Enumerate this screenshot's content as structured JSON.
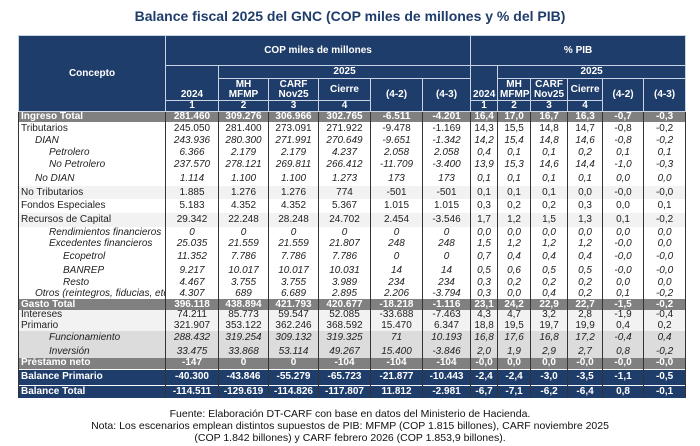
{
  "title": "Balance fiscal 2025 del GNC (COP miles de millones y % del PIB)",
  "header": {
    "concepto": "Concepto",
    "group_cop": "COP miles de millones",
    "group_pib": "% PIB",
    "year": "2025",
    "columns": [
      "2024",
      "MH MFMP",
      "CARF Nov25",
      "Cierre",
      "(4-2)",
      "(4-3)"
    ],
    "numbers": [
      "1",
      "2",
      "3",
      "4"
    ]
  },
  "rows": [
    {
      "label": "Ingreso Total",
      "style": "tot",
      "indent": 0,
      "values": [
        "281.460",
        "309.276",
        "306.966",
        "302.765",
        "-6.511",
        "-4.201",
        "16,4",
        "17,0",
        "16,7",
        "16,3",
        "-0,7",
        "-0,3"
      ]
    },
    {
      "label": "Tributarios",
      "style": "",
      "indent": 0,
      "values": [
        "245.050",
        "281.400",
        "273.091",
        "271.922",
        "-9.478",
        "-1.169",
        "14,3",
        "15,5",
        "14,8",
        "14,7",
        "-0,8",
        "-0,2"
      ]
    },
    {
      "label": "DIAN",
      "style": "it",
      "indent": 1,
      "values": [
        "243.936",
        "280.300",
        "271.991",
        "270.649",
        "-9.651",
        "-1.342",
        "14,2",
        "15,4",
        "14,8",
        "14,6",
        "-0,8",
        "-0,2"
      ]
    },
    {
      "label": "Petrolero",
      "style": "it",
      "indent": 2,
      "values": [
        "6.366",
        "2.179",
        "2.179",
        "4.237",
        "2.058",
        "2.058",
        "0,4",
        "0,1",
        "0,1",
        "0,2",
        "0,1",
        "0,1"
      ]
    },
    {
      "label": "No Petrolero",
      "style": "it",
      "indent": 2,
      "values": [
        "237.570",
        "278.121",
        "269.811",
        "266.412",
        "-11.709",
        "-3.400",
        "13,9",
        "15,3",
        "14,6",
        "14,4",
        "-1,0",
        "-0,3"
      ]
    },
    {
      "label": "No DIAN",
      "style": "it",
      "indent": 1,
      "values": [
        "1.114",
        "1.100",
        "1.100",
        "1.273",
        "173",
        "173",
        "0,1",
        "0,1",
        "0,1",
        "0,1",
        "0,0",
        "0,0"
      ]
    },
    {
      "label": "No Tributarios",
      "style": "band",
      "indent": 0,
      "values": [
        "1.885",
        "1.276",
        "1.276",
        "774",
        "-501",
        "-501",
        "0,1",
        "0,1",
        "0,1",
        "0,0",
        "-0,0",
        "-0,0"
      ]
    },
    {
      "label": "Fondos Especiales",
      "style": "",
      "indent": 0,
      "values": [
        "5.183",
        "4.352",
        "4.352",
        "5.367",
        "1.015",
        "1.015",
        "0,3",
        "0,2",
        "0,2",
        "0,3",
        "0,0",
        "0,1"
      ]
    },
    {
      "label": "Recursos de Capital",
      "style": "band",
      "indent": 0,
      "values": [
        "29.342",
        "22.248",
        "28.248",
        "24.702",
        "2.454",
        "-3.546",
        "1,7",
        "1,2",
        "1,5",
        "1,3",
        "0,1",
        "-0,2"
      ]
    },
    {
      "label": "Rendimientos financieros",
      "style": "it",
      "indent": 2,
      "values": [
        "0",
        "0",
        "0",
        "0",
        "0",
        "0",
        "0,0",
        "0,0",
        "0,0",
        "0,0",
        "0,0",
        "0,0"
      ]
    },
    {
      "label": "Excedentes financieros",
      "style": "it",
      "indent": 2,
      "values": [
        "25.035",
        "21.559",
        "21.559",
        "21.807",
        "248",
        "248",
        "1,5",
        "1,2",
        "1,2",
        "1,2",
        "-0,0",
        "0,0"
      ]
    },
    {
      "label": "Ecopetrol",
      "style": "it",
      "indent": 3,
      "values": [
        "11.352",
        "7.786",
        "7.786",
        "7.786",
        "0",
        "0",
        "0,7",
        "0,4",
        "0,4",
        "0,4",
        "-0,0",
        "-0,0"
      ]
    },
    {
      "label": "BANREP",
      "style": "it",
      "indent": 3,
      "values": [
        "9.217",
        "10.017",
        "10.017",
        "10.031",
        "14",
        "14",
        "0,5",
        "0,6",
        "0,5",
        "0,5",
        "-0,0",
        "-0,0"
      ]
    },
    {
      "label": "Resto",
      "style": "it",
      "indent": 3,
      "values": [
        "4.467",
        "3.755",
        "3.755",
        "3.989",
        "234",
        "234",
        "0,3",
        "0,2",
        "0,2",
        "0,2",
        "0,0",
        "0,0"
      ]
    },
    {
      "label": "Otros (reintegros, fiducias, etc)",
      "style": "it",
      "indent": 1,
      "values": [
        "4.307",
        "689",
        "6.689",
        "2.895",
        "2.206",
        "-3.794",
        "0,3",
        "0,0",
        "0,4",
        "0,2",
        "0,1",
        "-0,2"
      ]
    },
    {
      "label": "Gasto Total",
      "style": "tot",
      "indent": 0,
      "values": [
        "396.118",
        "438.894",
        "421.793",
        "420.677",
        "-18.218",
        "-1.116",
        "23,1",
        "24,2",
        "22,9",
        "22,7",
        "-1,5",
        "-0,2"
      ]
    },
    {
      "label": "Intereses",
      "style": "band",
      "indent": 0,
      "values": [
        "74.211",
        "85.773",
        "59.547",
        "52.085",
        "-33.688",
        "-7.463",
        "4,3",
        "4,7",
        "3,2",
        "2,8",
        "-1,9",
        "-0,4"
      ]
    },
    {
      "label": "Primario",
      "style": "band",
      "indent": 0,
      "values": [
        "321.907",
        "353.122",
        "362.246",
        "368.592",
        "15.470",
        "6.347",
        "18,8",
        "19,5",
        "19,7",
        "19,9",
        "0,4",
        "0,2"
      ]
    },
    {
      "label": "Funcionamiento",
      "style": "it band2",
      "indent": 2,
      "values": [
        "288.432",
        "319.254",
        "309.132",
        "319.325",
        "71",
        "10.193",
        "16,8",
        "17,6",
        "16,8",
        "17,2",
        "-0,4",
        "0,4"
      ]
    },
    {
      "label": "Inversión",
      "style": "it band2",
      "indent": 2,
      "values": [
        "33.475",
        "33.868",
        "53.114",
        "49.267",
        "15.400",
        "-3.846",
        "2,0",
        "1,9",
        "2,9",
        "2,7",
        "0,8",
        "-0,2"
      ]
    },
    {
      "label": "Préstamo neto",
      "style": "tot",
      "indent": 0,
      "values": [
        "-147",
        "0",
        "0",
        "-104",
        "-104",
        "-104",
        "-0,0",
        "0,0",
        "0,0",
        "-0,0",
        "-0,0",
        "-0,0"
      ]
    },
    {
      "label": "Balance Primario",
      "style": "bal",
      "indent": 0,
      "values": [
        "-40.300",
        "-43.846",
        "-55.279",
        "-65.723",
        "-21.877",
        "-10.443",
        "-2,4",
        "-2,4",
        "-3,0",
        "-3,5",
        "-1,1",
        "-0,5"
      ]
    },
    {
      "label": "Balance Total",
      "style": "bal",
      "indent": 0,
      "values": [
        "-114.511",
        "-129.619",
        "-114.826",
        "-117.807",
        "11.812",
        "-2.981",
        "-6,7",
        "-7,1",
        "-6,2",
        "-6,4",
        "0,8",
        "-0,1"
      ]
    }
  ],
  "footer": {
    "source": "Fuente: Elaboración DT-CARF con base en datos del Ministerio de Hacienda.",
    "note": "Nota: Los escenarios emplean distintos supuestos de PIB: MFMP (COP 1.815 billones), CARF noviembre 2025 (COP 1.842 billones) y CARF febrero 2026 (COP 1.853,9 billones)."
  },
  "colors": {
    "navy": "#1f3d6b",
    "gray_total": "#808080"
  }
}
